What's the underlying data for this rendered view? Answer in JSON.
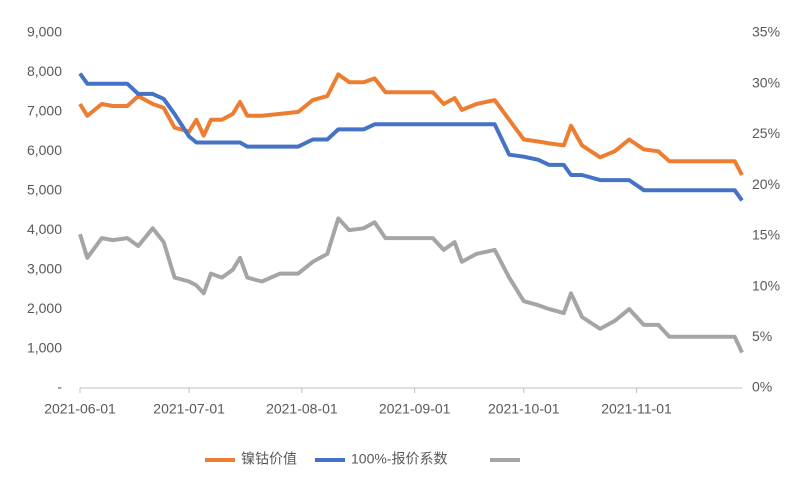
{
  "chart_data": {
    "type": "line",
    "x": [
      "2021-06-01",
      "2021-06-03",
      "2021-06-07",
      "2021-06-10",
      "2021-06-14",
      "2021-06-17",
      "2021-06-21",
      "2021-06-24",
      "2021-06-27",
      "2021-07-01",
      "2021-07-03",
      "2021-07-05",
      "2021-07-07",
      "2021-07-10",
      "2021-07-13",
      "2021-07-15",
      "2021-07-17",
      "2021-07-21",
      "2021-07-26",
      "2021-07-31",
      "2021-08-04",
      "2021-08-08",
      "2021-08-11",
      "2021-08-14",
      "2021-08-18",
      "2021-08-21",
      "2021-08-24",
      "2021-08-28",
      "2021-09-01",
      "2021-09-06",
      "2021-09-09",
      "2021-09-12",
      "2021-09-14",
      "2021-09-18",
      "2021-09-23",
      "2021-09-27",
      "2021-10-01",
      "2021-10-05",
      "2021-10-08",
      "2021-10-12",
      "2021-10-14",
      "2021-10-17",
      "2021-10-22",
      "2021-10-26",
      "2021-10-30",
      "2021-11-03",
      "2021-11-07",
      "2021-11-10",
      "2021-11-15",
      "2021-11-20",
      "2021-11-25",
      "2021-11-28",
      "2021-11-30"
    ],
    "series": [
      {
        "name": "镍钴价值",
        "color": "#ed7d31",
        "axis": "y",
        "values": [
          7200,
          6900,
          7200,
          7150,
          7150,
          7400,
          7200,
          7100,
          6600,
          6500,
          6800,
          6400,
          6800,
          6800,
          6950,
          7250,
          6900,
          6900,
          6950,
          7000,
          7300,
          7400,
          7950,
          7750,
          7750,
          7850,
          7500,
          7500,
          7500,
          7500,
          7200,
          7350,
          7050,
          7200,
          7300,
          6800,
          6300,
          6250,
          6200,
          6150,
          6650,
          6150,
          5850,
          6000,
          6300,
          6050,
          6000,
          5750,
          5750,
          5750,
          5750,
          5750,
          5400
        ]
      },
      {
        "name": "100%-报价系数",
        "color": "#4472c4",
        "axis": "y2",
        "values": [
          31,
          30,
          30,
          30,
          30,
          29,
          29,
          28.5,
          27,
          24.8,
          24.2,
          24.2,
          24.2,
          24.2,
          24.2,
          24.2,
          23.8,
          23.8,
          23.8,
          23.8,
          24.5,
          24.5,
          25.5,
          25.5,
          25.5,
          26,
          26,
          26,
          26,
          26,
          26,
          26,
          26,
          26,
          26,
          23,
          22.8,
          22.5,
          22,
          22,
          21,
          21,
          20.5,
          20.5,
          20.5,
          19.5,
          19.5,
          19.5,
          19.5,
          19.5,
          19.5,
          19.5,
          18.5
        ]
      },
      {
        "name": null,
        "color": "#a5a5a5",
        "axis": "y",
        "values": [
          3900,
          3300,
          3800,
          3750,
          3800,
          3600,
          4050,
          3700,
          2800,
          2700,
          2600,
          2400,
          2900,
          2800,
          3000,
          3300,
          2800,
          2700,
          2900,
          2900,
          3200,
          3400,
          4300,
          4000,
          4050,
          4200,
          3800,
          3800,
          3800,
          3800,
          3500,
          3700,
          3200,
          3400,
          3500,
          2800,
          2200,
          2100,
          2000,
          1900,
          2400,
          1800,
          1500,
          1700,
          2000,
          1600,
          1600,
          1300,
          1300,
          1300,
          1300,
          1300,
          900
        ]
      }
    ],
    "xlim": [
      "2021-06-01",
      "2021-11-30"
    ],
    "xticks": [
      "2021-06-01",
      "2021-07-01",
      "2021-08-01",
      "2021-09-01",
      "2021-10-01",
      "2021-11-01"
    ],
    "ylim": [
      0,
      9000
    ],
    "yticks": [
      {
        "value": 0,
        "label": "-"
      },
      {
        "value": 1000,
        "label": "1,000"
      },
      {
        "value": 2000,
        "label": "2,000"
      },
      {
        "value": 3000,
        "label": "3,000"
      },
      {
        "value": 4000,
        "label": "4,000"
      },
      {
        "value": 5000,
        "label": "5,000"
      },
      {
        "value": 6000,
        "label": "6,000"
      },
      {
        "value": 7000,
        "label": "7,000"
      },
      {
        "value": 8000,
        "label": "8,000"
      },
      {
        "value": 9000,
        "label": "9,000"
      }
    ],
    "y2lim": [
      0,
      35
    ],
    "y2ticks": [
      {
        "value": 0,
        "label": "0%"
      },
      {
        "value": 5,
        "label": "5%"
      },
      {
        "value": 10,
        "label": "10%"
      },
      {
        "value": 15,
        "label": "15%"
      },
      {
        "value": 20,
        "label": "20%"
      },
      {
        "value": 25,
        "label": "25%"
      },
      {
        "value": 30,
        "label": "30%"
      },
      {
        "value": 35,
        "label": "35%"
      }
    ],
    "grid": false
  }
}
